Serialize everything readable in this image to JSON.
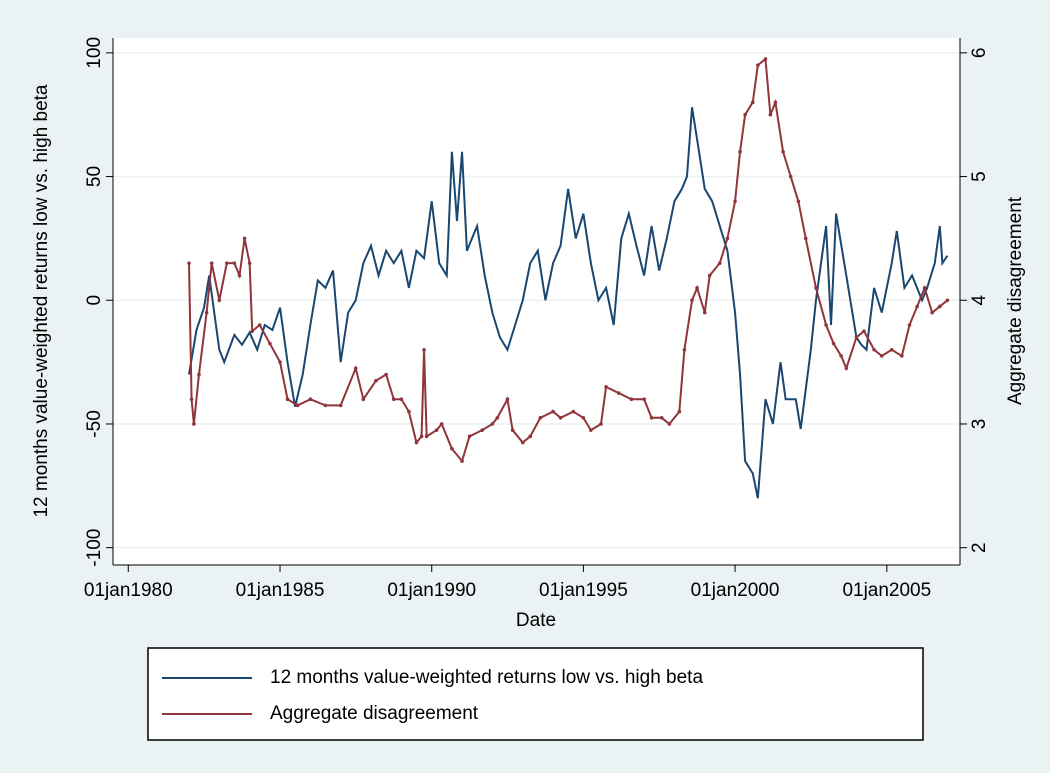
{
  "chart_data": {
    "type": "line",
    "x_label": "Date",
    "y_label": "12 months value-weighted returns low vs. high beta",
    "y2_label": "Aggregate disagreement",
    "xlim": [
      "1979-07-01",
      "2007-06-01"
    ],
    "xticks": [
      {
        "value": "1980-01-01",
        "label": "01jan1980"
      },
      {
        "value": "1985-01-01",
        "label": "01jan1985"
      },
      {
        "value": "1990-01-01",
        "label": "01jan1990"
      },
      {
        "value": "1995-01-01",
        "label": "01jan1995"
      },
      {
        "value": "2000-01-01",
        "label": "01jan2000"
      },
      {
        "value": "2005-01-01",
        "label": "01jan2005"
      }
    ],
    "ylim": [
      -107,
      106
    ],
    "yticks": [
      -100,
      -50,
      0,
      50,
      100
    ],
    "y2lim": [
      1.86,
      6.12
    ],
    "y2ticks": [
      2,
      3,
      4,
      5,
      6
    ],
    "grid": true,
    "legend": "bottom",
    "series": [
      {
        "name": "12 months value-weighted returns low vs. high beta",
        "color": "#1a476f",
        "markers": false,
        "x": [
          "1982-01-01",
          "1982-04-01",
          "1982-07-01",
          "1982-09-01",
          "1983-01-01",
          "1983-03-01",
          "1983-07-01",
          "1983-10-01",
          "1984-01-01",
          "1984-04-01",
          "1984-07-01",
          "1984-10-01",
          "1985-01-01",
          "1985-04-01",
          "1985-07-01",
          "1985-10-01",
          "1986-01-01",
          "1986-04-01",
          "1986-07-01",
          "1986-10-01",
          "1987-01-01",
          "1987-04-01",
          "1987-07-01",
          "1987-10-01",
          "1988-01-01",
          "1988-04-01",
          "1988-07-01",
          "1988-10-01",
          "1989-01-01",
          "1989-04-01",
          "1989-07-01",
          "1989-10-01",
          "1990-01-01",
          "1990-04-01",
          "1990-07-01",
          "1990-09-01",
          "1990-11-01",
          "1991-01-01",
          "1991-03-01",
          "1991-07-01",
          "1991-10-01",
          "1992-01-01",
          "1992-04-01",
          "1992-07-01",
          "1992-10-01",
          "1993-01-01",
          "1993-04-01",
          "1993-07-01",
          "1993-10-01",
          "1994-01-01",
          "1994-04-01",
          "1994-07-01",
          "1994-10-01",
          "1995-01-01",
          "1995-04-01",
          "1995-07-01",
          "1995-10-01",
          "1996-01-01",
          "1996-04-01",
          "1996-07-01",
          "1996-10-01",
          "1997-01-01",
          "1997-04-01",
          "1997-07-01",
          "1997-10-01",
          "1998-01-01",
          "1998-04-01",
          "1998-06-01",
          "1998-08-01",
          "1998-10-01",
          "1999-01-01",
          "1999-04-01",
          "1999-07-01",
          "1999-10-01",
          "2000-01-01",
          "2000-03-01",
          "2000-05-01",
          "2000-08-01",
          "2000-10-01",
          "2001-01-01",
          "2001-04-01",
          "2001-07-01",
          "2001-09-01",
          "2002-01-01",
          "2002-03-01",
          "2002-07-01",
          "2002-09-01",
          "2003-01-01",
          "2003-03-01",
          "2003-05-01",
          "2003-09-01",
          "2004-01-01",
          "2004-03-01",
          "2004-05-01",
          "2004-08-01",
          "2004-11-01",
          "2005-03-01",
          "2005-05-01",
          "2005-08-01",
          "2005-11-01",
          "2006-03-01",
          "2006-05-01",
          "2006-08-01",
          "2006-10-01",
          "2006-11-01",
          "2007-01-01"
        ],
        "values": [
          -30,
          -12,
          -3,
          10,
          -20,
          -25,
          -14,
          -18,
          -13,
          -20,
          -10,
          -12,
          -3,
          -25,
          -43,
          -30,
          -10,
          8,
          5,
          12,
          -25,
          -5,
          0,
          15,
          22,
          10,
          20,
          15,
          20,
          5,
          20,
          17,
          40,
          15,
          10,
          60,
          32,
          60,
          20,
          30,
          10,
          -5,
          -15,
          -20,
          -10,
          0,
          15,
          20,
          0,
          15,
          22,
          45,
          25,
          35,
          15,
          0,
          5,
          -10,
          25,
          35,
          22,
          10,
          30,
          12,
          25,
          40,
          45,
          50,
          78,
          65,
          45,
          40,
          30,
          20,
          -5,
          -30,
          -65,
          -70,
          -80,
          -40,
          -50,
          -25,
          -40,
          -40,
          -52,
          -20,
          0,
          30,
          -10,
          35,
          10,
          -15,
          -18,
          -20,
          5,
          -5,
          15,
          28,
          5,
          10,
          0,
          5,
          15,
          30,
          15,
          18
        ]
      },
      {
        "name": "Aggregate disagreement",
        "color": "#90353b",
        "axis": "y2",
        "markers": true,
        "x": [
          "1982-01-01",
          "1982-02-01",
          "1982-03-01",
          "1982-05-01",
          "1982-08-01",
          "1982-10-01",
          "1983-01-01",
          "1983-04-01",
          "1983-07-01",
          "1983-09-01",
          "1983-11-01",
          "1984-01-01",
          "1984-02-01",
          "1984-05-01",
          "1984-09-01",
          "1985-01-01",
          "1985-04-01",
          "1985-08-01",
          "1986-01-01",
          "1986-07-01",
          "1987-01-01",
          "1987-07-01",
          "1987-10-01",
          "1988-03-01",
          "1988-07-01",
          "1988-10-01",
          "1989-01-01",
          "1989-04-01",
          "1989-07-01",
          "1989-09-01",
          "1989-10-01",
          "1989-11-01",
          "1990-03-01",
          "1990-05-01",
          "1990-09-01",
          "1991-01-01",
          "1991-04-01",
          "1991-09-01",
          "1992-01-01",
          "1992-03-01",
          "1992-07-01",
          "1992-09-01",
          "1993-01-01",
          "1993-04-01",
          "1993-08-01",
          "1994-01-01",
          "1994-04-01",
          "1994-09-01",
          "1995-01-01",
          "1995-04-01",
          "1995-08-01",
          "1995-10-01",
          "1996-03-01",
          "1996-08-01",
          "1997-01-01",
          "1997-04-01",
          "1997-08-01",
          "1997-11-01",
          "1998-03-01",
          "1998-05-01",
          "1998-08-01",
          "1998-10-01",
          "1999-01-01",
          "1999-03-01",
          "1999-07-01",
          "1999-10-01",
          "2000-01-01",
          "2000-03-01",
          "2000-05-01",
          "2000-08-01",
          "2000-10-01",
          "2001-01-01",
          "2001-03-01",
          "2001-05-01",
          "2001-08-01",
          "2001-11-01",
          "2002-02-01",
          "2002-05-01",
          "2002-09-01",
          "2003-01-01",
          "2003-04-01",
          "2003-07-01",
          "2003-09-01",
          "2004-01-01",
          "2004-04-01",
          "2004-08-01",
          "2004-11-01",
          "2005-03-01",
          "2005-07-01",
          "2005-10-01",
          "2006-01-01",
          "2006-04-01",
          "2006-07-01",
          "2006-10-01",
          "2007-01-01"
        ],
        "values": [
          4.3,
          3.2,
          3.0,
          3.4,
          3.9,
          4.3,
          4.0,
          4.3,
          4.3,
          4.2,
          4.5,
          4.3,
          3.75,
          3.8,
          3.65,
          3.5,
          3.2,
          3.15,
          3.2,
          3.15,
          3.15,
          3.45,
          3.2,
          3.35,
          3.4,
          3.2,
          3.2,
          3.1,
          2.85,
          2.9,
          3.6,
          2.9,
          2.95,
          3.0,
          2.8,
          2.7,
          2.9,
          2.95,
          3.0,
          3.05,
          3.2,
          2.95,
          2.85,
          2.9,
          3.05,
          3.1,
          3.05,
          3.1,
          3.05,
          2.95,
          3.0,
          3.3,
          3.25,
          3.2,
          3.2,
          3.05,
          3.05,
          3.0,
          3.1,
          3.6,
          4.0,
          4.1,
          3.9,
          4.2,
          4.3,
          4.5,
          4.8,
          5.2,
          5.5,
          5.6,
          5.9,
          5.95,
          5.5,
          5.6,
          5.2,
          5.0,
          4.8,
          4.5,
          4.1,
          3.8,
          3.65,
          3.55,
          3.45,
          3.7,
          3.75,
          3.6,
          3.55,
          3.6,
          3.55,
          3.8,
          3.95,
          4.1,
          3.9,
          3.95,
          4.0
        ]
      }
    ]
  }
}
